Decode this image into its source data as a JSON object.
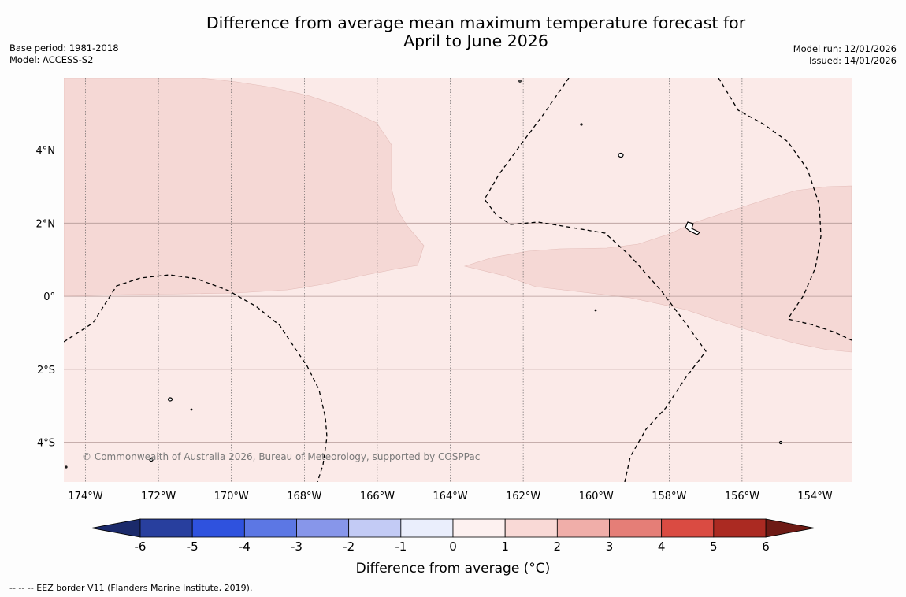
{
  "title": {
    "line1": "Difference from average mean maximum temperature forecast for",
    "line2": "April to June 2026"
  },
  "meta_left": {
    "base_period": "Base period: 1981-2018",
    "model": "Model: ACCESS-S2"
  },
  "meta_right": {
    "model_run": "Model run: 12/01/2026",
    "issued": "Issued: 14/01/2026"
  },
  "map": {
    "lon_ticks": [
      "174°W",
      "172°W",
      "170°W",
      "168°W",
      "166°W",
      "164°W",
      "162°W",
      "160°W",
      "158°W",
      "156°W",
      "154°W"
    ],
    "lat_ticks": [
      "4°N",
      "2°N",
      "0°",
      "2°S",
      "4°S"
    ],
    "copyright": "© Commonwealth of Australia 2026, Bureau of Meteorology, supported by COSPPac",
    "background_color": "#fbeae8",
    "anomaly_color": "#f5d8d5"
  },
  "colorbar": {
    "title": "Difference from average (°C)",
    "tick_labels": [
      "-6",
      "-5",
      "-4",
      "-3",
      "-2",
      "-1",
      "0",
      "1",
      "2",
      "3",
      "4",
      "5",
      "6"
    ],
    "colors": [
      "#283f9e",
      "#2f52de",
      "#5c77e4",
      "#8796ea",
      "#c3cbf5",
      "#eaeefc",
      "#fdf1f0",
      "#f9d9d6",
      "#f0aea9",
      "#e57e77",
      "#da4b42",
      "#ab2a22"
    ],
    "low_extend_color": "#1b2a6b",
    "high_extend_color": "#6e1a15"
  },
  "footnote": "--  --  -- EEZ border V11 (Flanders Marine Institute, 2019)."
}
